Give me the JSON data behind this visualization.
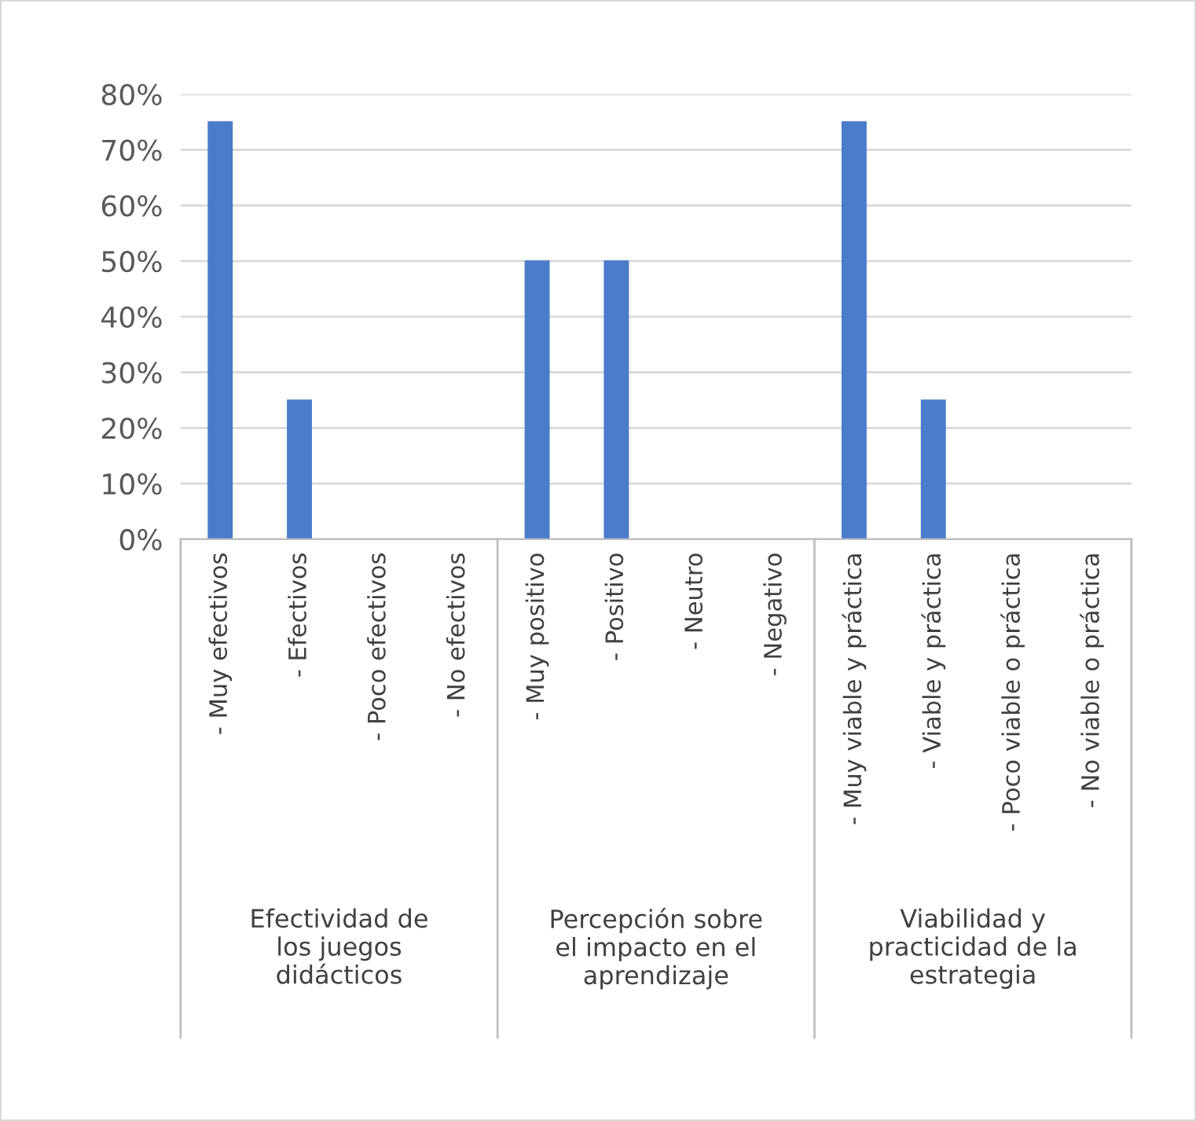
{
  "chart_data": {
    "type": "bar",
    "categories": [
      "- Muy efectivos",
      "- Efectivos",
      "- Poco efectivos",
      "- No efectivos",
      "- Muy positivo",
      "- Positivo",
      "- Neutro",
      "- Negativo",
      "- Muy viable y práctica",
      "- Viable y práctica",
      "- Poco viable o práctica",
      "- No viable o práctica"
    ],
    "values": [
      75,
      25,
      0,
      0,
      50,
      50,
      0,
      0,
      75,
      25,
      0,
      0
    ],
    "color": "#4a7cc9",
    "ylim": [
      0,
      80
    ],
    "yticks": [
      {
        "value": 0,
        "label": "0%"
      },
      {
        "value": 10,
        "label": "10%"
      },
      {
        "value": 20,
        "label": "20%"
      },
      {
        "value": 30,
        "label": "30%"
      },
      {
        "value": 40,
        "label": "40%"
      },
      {
        "value": 50,
        "label": "50%"
      },
      {
        "value": 60,
        "label": "60%"
      },
      {
        "value": 70,
        "label": "70%"
      },
      {
        "value": 80,
        "label": "80%"
      }
    ],
    "grid": "y",
    "legend": false,
    "annotations": [
      "Efectividad de\nlos juegos\ndidácticos",
      "Percepción sobre\nel impacto en el\naprendizaje",
      "Viabilidad y\npracticidad de la\nestrategia"
    ]
  }
}
